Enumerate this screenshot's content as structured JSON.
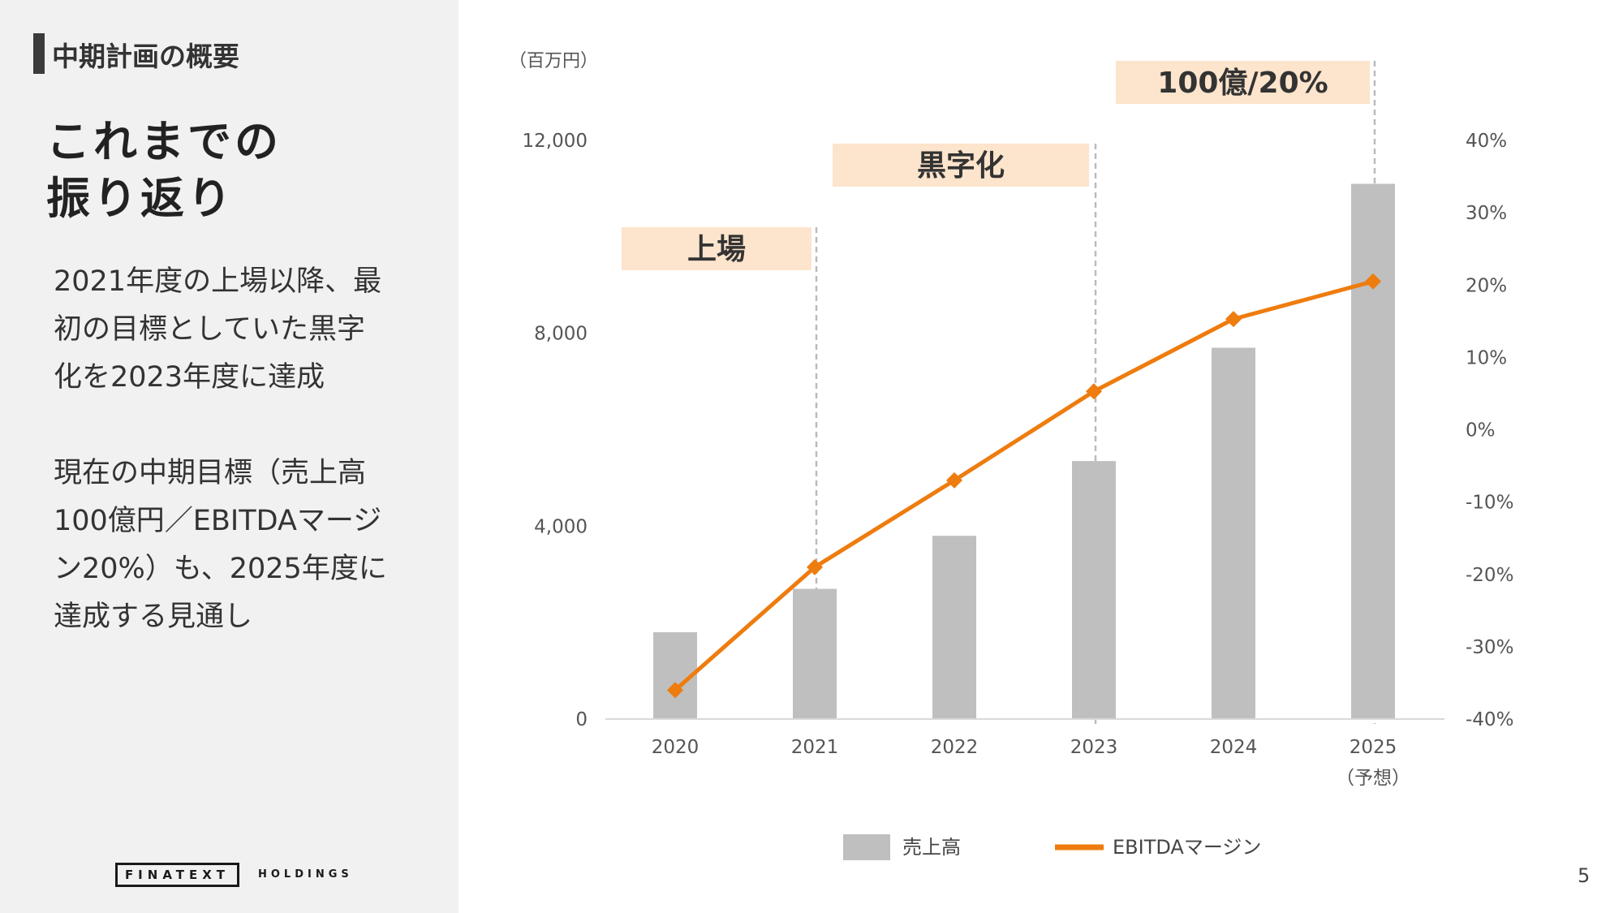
{
  "slide": {
    "section_label": "中期計画の概要",
    "title_lines": [
      "これまでの",
      "振り返り"
    ],
    "paragraph1_lines": [
      "2021年度の上場以降、最",
      "初の目標としていた黒字",
      "化を2023年度に達成"
    ],
    "paragraph2_lines": [
      "現在の中期目標（売上高",
      "100億円／EBITDAマージ",
      "ン20%）も、2025年度に",
      "達成する見通し"
    ],
    "page_number": "5"
  },
  "logo": {
    "name": "FINATEXT",
    "sub": "HOLDINGS"
  },
  "colors": {
    "panel_bg": "#f1f1f1",
    "bar": "#bfbfbf",
    "line": "#ee7c0e",
    "annotation_bg": "#fde4cc",
    "guide_line": "#bbbbbb"
  },
  "chart_data": {
    "type": "bar",
    "unit_label": "（百万円）",
    "categories": [
      "2020",
      "2021",
      "2022",
      "2023",
      "2024",
      "2025"
    ],
    "category_sublabels": [
      "",
      "",
      "",
      "",
      "",
      "（予想）"
    ],
    "y_left": {
      "ticks": [
        "0",
        "4,000",
        "8,000",
        "12,000"
      ],
      "ylim": [
        0,
        12000
      ]
    },
    "y_right": {
      "ticks": [
        "-40%",
        "-30%",
        "-20%",
        "-10%",
        "0%",
        "10%",
        "20%",
        "30%",
        "40%"
      ],
      "ylim": [
        -40,
        40
      ]
    },
    "series": [
      {
        "name": "売上高",
        "type": "bar",
        "axis": "left",
        "values": [
          1800,
          2700,
          3800,
          5350,
          7700,
          11100
        ]
      },
      {
        "name": "EBITDAマージン",
        "type": "line",
        "axis": "right",
        "marker": "diamond",
        "values": [
          -36,
          -19,
          -7,
          5.3,
          15.3,
          20.5
        ]
      }
    ],
    "annotations": [
      {
        "label": "上場",
        "category": "2021"
      },
      {
        "label": "黒字化",
        "category": "2023"
      },
      {
        "label": "100億/20%",
        "category": "2025"
      }
    ],
    "legend": {
      "position": "bottom",
      "entries": [
        "売上高",
        "EBITDAマージン"
      ]
    },
    "grid": false
  }
}
